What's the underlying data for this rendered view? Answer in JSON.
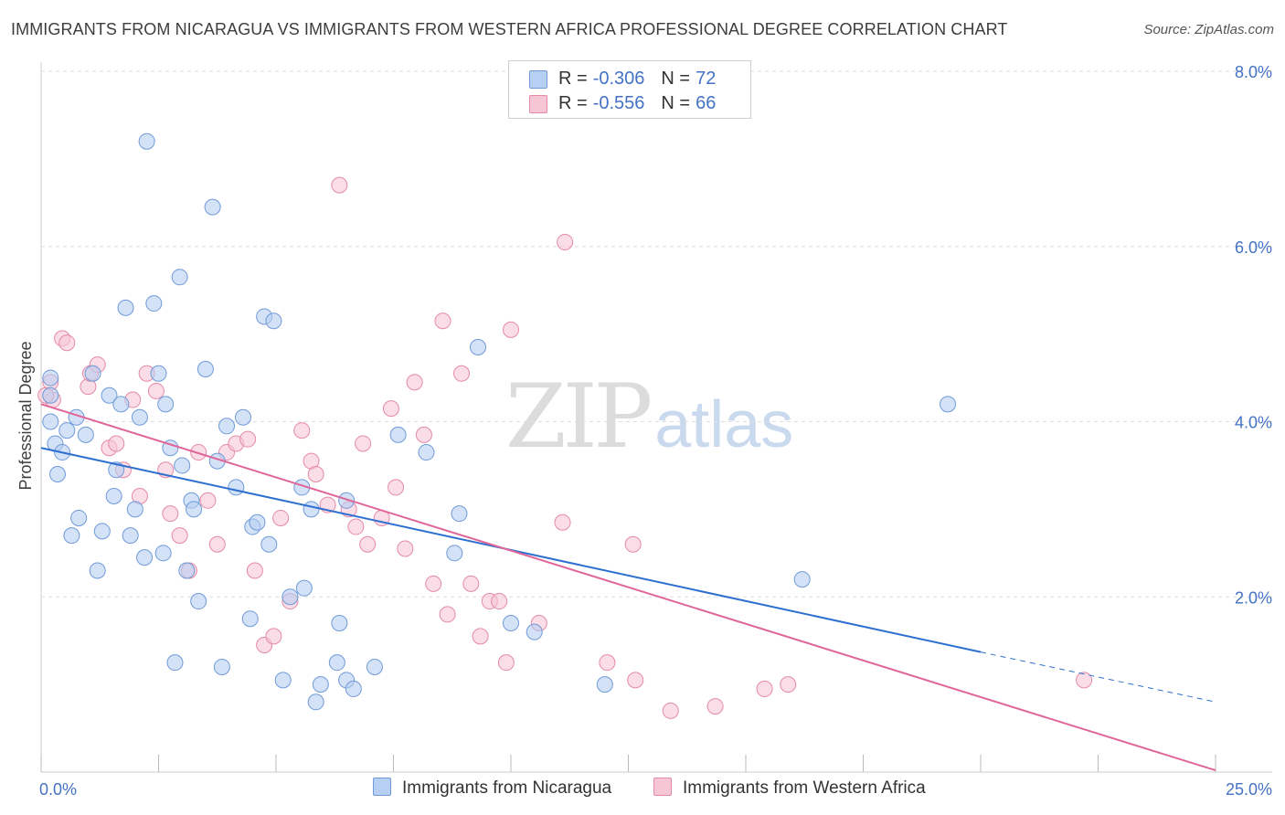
{
  "header": {
    "title": "IMMIGRANTS FROM NICARAGUA VS IMMIGRANTS FROM WESTERN AFRICA PROFESSIONAL DEGREE CORRELATION CHART",
    "source": "Source: ZipAtlas.com"
  },
  "watermark": {
    "zip": "ZIP",
    "atlas": "atlas"
  },
  "legend": {
    "rows": [
      {
        "r_label": "R =",
        "r_value": "-0.306",
        "n_label": "N =",
        "n_value": "72"
      },
      {
        "r_label": "R =",
        "r_value": "-0.556",
        "n_label": "N =",
        "n_value": "66"
      }
    ]
  },
  "colors": {
    "series1_fill": "#b7cff2",
    "series1_stroke": "#6f9ad8",
    "series1_line": "#2d6fd0",
    "series2_fill": "#f7c6d5",
    "series2_stroke": "#e48aa8",
    "series2_line": "#e0669a",
    "tick_color": "#4472c4",
    "grid": "#dddddd"
  },
  "chart_data": {
    "type": "scatter",
    "title": "IMMIGRANTS FROM NICARAGUA VS IMMIGRANTS FROM WESTERN AFRICA PROFESSIONAL DEGREE CORRELATION CHART",
    "xlabel": "",
    "ylabel": "Professional Degree",
    "xlim": [
      0,
      25
    ],
    "ylim": [
      0,
      8.0
    ],
    "x_tick_labels": [
      "0.0%",
      "25.0%"
    ],
    "y_ticks": [
      2.0,
      4.0,
      6.0,
      8.0
    ],
    "y_tick_labels": [
      "2.0%",
      "4.0%",
      "6.0%",
      "8.0%"
    ],
    "grid": true,
    "legend_position": "top-center",
    "series": [
      {
        "name": "Immigrants from Nicaragua",
        "r": -0.306,
        "n": 72,
        "trend": {
          "x": [
            0.0,
            20.0
          ],
          "y": [
            3.7,
            1.37
          ],
          "dashed_to": {
            "x": 25.0,
            "y": 0.8
          }
        },
        "points": [
          [
            0.2,
            4.5
          ],
          [
            0.2,
            4.3
          ],
          [
            0.2,
            4.0
          ],
          [
            0.3,
            3.75
          ],
          [
            0.35,
            3.4
          ],
          [
            0.45,
            3.65
          ],
          [
            0.55,
            3.9
          ],
          [
            0.65,
            2.7
          ],
          [
            0.75,
            4.05
          ],
          [
            0.8,
            2.9
          ],
          [
            0.95,
            3.85
          ],
          [
            1.1,
            4.55
          ],
          [
            1.2,
            2.3
          ],
          [
            1.3,
            2.75
          ],
          [
            1.45,
            4.3
          ],
          [
            1.55,
            3.15
          ],
          [
            1.6,
            3.45
          ],
          [
            1.7,
            4.2
          ],
          [
            1.8,
            5.3
          ],
          [
            1.9,
            2.7
          ],
          [
            2.0,
            3.0
          ],
          [
            2.1,
            4.05
          ],
          [
            2.2,
            2.45
          ],
          [
            2.25,
            7.2
          ],
          [
            2.4,
            5.35
          ],
          [
            2.5,
            4.55
          ],
          [
            2.6,
            2.5
          ],
          [
            2.65,
            4.2
          ],
          [
            2.75,
            3.7
          ],
          [
            2.85,
            1.25
          ],
          [
            2.95,
            5.65
          ],
          [
            3.0,
            3.5
          ],
          [
            3.1,
            2.3
          ],
          [
            3.2,
            3.1
          ],
          [
            3.25,
            3.0
          ],
          [
            3.35,
            1.95
          ],
          [
            3.5,
            4.6
          ],
          [
            3.65,
            6.45
          ],
          [
            3.75,
            3.55
          ],
          [
            3.85,
            1.2
          ],
          [
            3.95,
            3.95
          ],
          [
            4.15,
            3.25
          ],
          [
            4.3,
            4.05
          ],
          [
            4.45,
            1.75
          ],
          [
            4.5,
            2.8
          ],
          [
            4.6,
            2.85
          ],
          [
            4.75,
            5.2
          ],
          [
            4.85,
            2.6
          ],
          [
            4.95,
            5.15
          ],
          [
            5.15,
            1.05
          ],
          [
            5.3,
            2.0
          ],
          [
            5.55,
            3.25
          ],
          [
            5.6,
            2.1
          ],
          [
            5.75,
            3.0
          ],
          [
            5.85,
            0.8
          ],
          [
            5.95,
            1.0
          ],
          [
            6.3,
            1.25
          ],
          [
            6.35,
            1.7
          ],
          [
            6.5,
            3.1
          ],
          [
            6.5,
            1.05
          ],
          [
            6.65,
            0.95
          ],
          [
            7.1,
            1.2
          ],
          [
            7.6,
            3.85
          ],
          [
            8.2,
            3.65
          ],
          [
            8.8,
            2.5
          ],
          [
            8.9,
            2.95
          ],
          [
            9.3,
            4.85
          ],
          [
            10.0,
            1.7
          ],
          [
            10.5,
            1.6
          ],
          [
            12.0,
            1.0
          ],
          [
            16.2,
            2.2
          ],
          [
            19.3,
            4.2
          ]
        ]
      },
      {
        "name": "Immigrants from Western Africa",
        "r": -0.556,
        "n": 66,
        "trend": {
          "x": [
            0.0,
            25.0
          ],
          "y": [
            4.2,
            0.02
          ]
        },
        "points": [
          [
            0.2,
            4.45
          ],
          [
            0.25,
            4.25
          ],
          [
            0.45,
            4.95
          ],
          [
            0.55,
            4.9
          ],
          [
            1.0,
            4.4
          ],
          [
            1.05,
            4.55
          ],
          [
            1.2,
            4.65
          ],
          [
            1.45,
            3.7
          ],
          [
            1.6,
            3.75
          ],
          [
            1.75,
            3.45
          ],
          [
            1.95,
            4.25
          ],
          [
            2.1,
            3.15
          ],
          [
            2.25,
            4.55
          ],
          [
            2.45,
            4.35
          ],
          [
            2.65,
            3.45
          ],
          [
            2.75,
            2.95
          ],
          [
            2.95,
            2.7
          ],
          [
            3.15,
            2.3
          ],
          [
            3.35,
            3.65
          ],
          [
            3.55,
            3.1
          ],
          [
            3.75,
            2.6
          ],
          [
            3.95,
            3.65
          ],
          [
            4.15,
            3.75
          ],
          [
            4.4,
            3.8
          ],
          [
            4.55,
            2.3
          ],
          [
            4.75,
            1.45
          ],
          [
            4.95,
            1.55
          ],
          [
            5.1,
            2.9
          ],
          [
            5.3,
            1.95
          ],
          [
            5.55,
            3.9
          ],
          [
            5.75,
            3.55
          ],
          [
            5.85,
            3.4
          ],
          [
            6.1,
            3.05
          ],
          [
            6.35,
            6.7
          ],
          [
            6.55,
            3.0
          ],
          [
            6.7,
            2.8
          ],
          [
            6.85,
            3.75
          ],
          [
            6.95,
            2.6
          ],
          [
            7.25,
            2.9
          ],
          [
            7.45,
            4.15
          ],
          [
            7.55,
            3.25
          ],
          [
            7.75,
            2.55
          ],
          [
            7.95,
            4.45
          ],
          [
            8.15,
            3.85
          ],
          [
            8.35,
            2.15
          ],
          [
            8.55,
            5.15
          ],
          [
            8.65,
            1.8
          ],
          [
            8.95,
            4.55
          ],
          [
            9.15,
            2.15
          ],
          [
            9.35,
            1.55
          ],
          [
            9.55,
            1.95
          ],
          [
            9.75,
            1.95
          ],
          [
            9.9,
            1.25
          ],
          [
            10.0,
            5.05
          ],
          [
            10.6,
            1.7
          ],
          [
            11.1,
            2.85
          ],
          [
            11.15,
            6.05
          ],
          [
            12.05,
            1.25
          ],
          [
            12.6,
            2.6
          ],
          [
            12.65,
            1.05
          ],
          [
            13.4,
            0.7
          ],
          [
            14.35,
            0.75
          ],
          [
            15.4,
            0.95
          ],
          [
            15.9,
            1.0
          ],
          [
            22.2,
            1.05
          ],
          [
            0.1,
            4.3
          ]
        ]
      }
    ]
  },
  "bottom_legend": {
    "items": [
      {
        "label": "Immigrants from Nicaragua"
      },
      {
        "label": "Immigrants from Western Africa"
      }
    ]
  }
}
